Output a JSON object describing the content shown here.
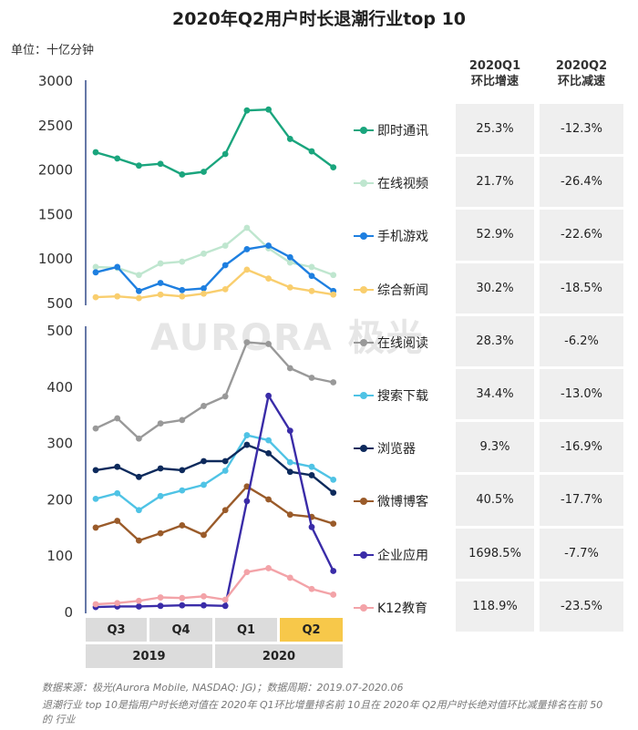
{
  "title": "2020年Q2用户时长退潮行业top 10",
  "unit_label": "单位：十亿分钟",
  "watermark": "AURORA 极光",
  "table": {
    "col1_header": [
      "2020Q1",
      "环比增速"
    ],
    "col2_header": [
      "2020Q2",
      "环比减速"
    ]
  },
  "x_axis": {
    "quarters": [
      "Q3",
      "Q4",
      "Q1",
      "Q2"
    ],
    "years": [
      "2019",
      "2020"
    ],
    "highlight_quarter": "Q2",
    "highlight_color": "#f7c84a"
  },
  "footer": {
    "source": "数据来源：极光(Aurora Mobile, NASDAQ: JG)；数据周期：2019.07-2020.06",
    "note": "退潮行业 top 10是指用户时长绝对值在 2020年 Q1环比增量排名前 10且在 2020年 Q2用户时长绝对值环比减量排名在前 50的 行业"
  },
  "chart_data": [
    {
      "type": "line",
      "panel": "top",
      "ylim": [
        500,
        3000
      ],
      "yticks": [
        500,
        1000,
        1500,
        2000,
        2500,
        3000
      ],
      "x": [
        1,
        2,
        3,
        4,
        5,
        6,
        7,
        8,
        9,
        10,
        11,
        12
      ],
      "series": [
        {
          "name": "即时通讯",
          "color": "#1aa57d",
          "values": [
            2190,
            2120,
            2040,
            2060,
            1940,
            1970,
            2170,
            2660,
            2670,
            2340,
            2200,
            2020
          ],
          "q1_growth": "25.3%",
          "q2_decline": "-12.3%"
        },
        {
          "name": "在线视频",
          "color": "#bfe6cf",
          "values": [
            900,
            890,
            810,
            940,
            960,
            1050,
            1140,
            1340,
            1110,
            950,
            900,
            810
          ],
          "q1_growth": "21.7%",
          "q2_decline": "-26.4%"
        },
        {
          "name": "手机游戏",
          "color": "#1e7fe0",
          "values": [
            840,
            900,
            630,
            720,
            640,
            660,
            920,
            1100,
            1140,
            1010,
            800,
            630
          ],
          "q1_growth": "52.9%",
          "q2_decline": "-22.6%"
        },
        {
          "name": "综合新闻",
          "color": "#f9ce6e",
          "values": [
            560,
            570,
            550,
            590,
            570,
            600,
            650,
            870,
            770,
            670,
            630,
            590
          ],
          "q1_growth": "30.2%",
          "q2_decline": "-18.5%"
        }
      ]
    },
    {
      "type": "line",
      "panel": "bottom",
      "ylim": [
        0,
        500
      ],
      "yticks": [
        0,
        100,
        200,
        300,
        400,
        500
      ],
      "x": [
        1,
        2,
        3,
        4,
        5,
        6,
        7,
        8,
        9,
        10,
        11,
        12
      ],
      "series": [
        {
          "name": "在线阅读",
          "color": "#999999",
          "values": [
            325,
            343,
            307,
            334,
            340,
            365,
            382,
            478,
            475,
            432,
            415,
            407
          ],
          "q1_growth": "28.3%",
          "q2_decline": "-6.2%"
        },
        {
          "name": "搜索下载",
          "color": "#4fc3e5",
          "values": [
            200,
            210,
            180,
            205,
            215,
            225,
            250,
            313,
            304,
            265,
            257,
            234
          ],
          "q1_growth": "34.4%",
          "q2_decline": "-13.0%"
        },
        {
          "name": "浏览器",
          "color": "#0d2a5c",
          "values": [
            251,
            257,
            239,
            254,
            251,
            267,
            267,
            296,
            281,
            248,
            242,
            211
          ],
          "q1_growth": "9.3%",
          "q2_decline": "-16.9%"
        },
        {
          "name": "微博博客",
          "color": "#9a5b2a",
          "values": [
            149,
            161,
            126,
            139,
            153,
            136,
            180,
            222,
            199,
            172,
            168,
            156
          ],
          "q1_growth": "40.5%",
          "q2_decline": "-17.7%"
        },
        {
          "name": "企业应用",
          "color": "#3a2ca8",
          "values": [
            8,
            9,
            9,
            10,
            11,
            11,
            10,
            196,
            383,
            321,
            150,
            72
          ],
          "q1_growth": "1698.5%",
          "q2_decline": "-7.7%"
        },
        {
          "name": "K12教育",
          "color": "#f3a3a8",
          "values": [
            13,
            15,
            19,
            25,
            24,
            27,
            21,
            70,
            77,
            60,
            40,
            30
          ],
          "q1_growth": "118.9%",
          "q2_decline": "-23.5%"
        }
      ]
    }
  ]
}
